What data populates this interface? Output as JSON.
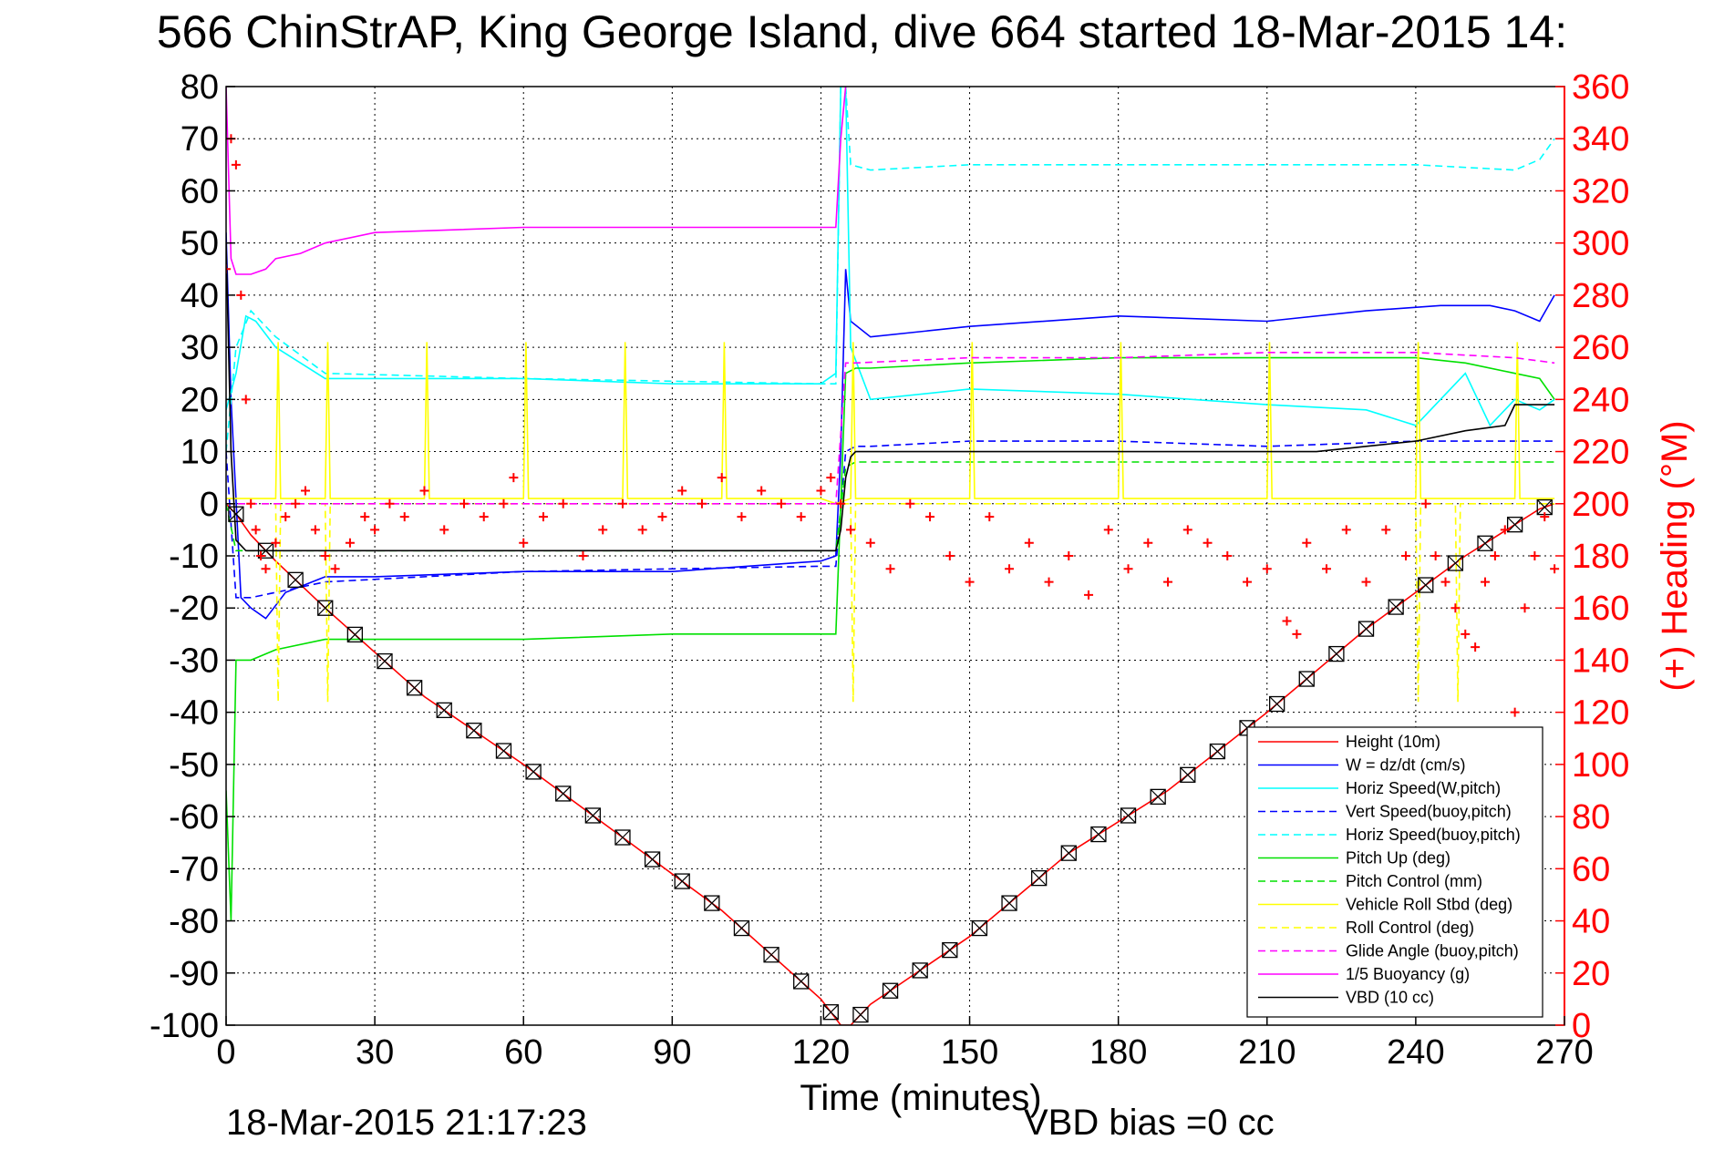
{
  "chart_data": {
    "type": "line",
    "title": "566 ChinStrAP, King George Island, dive 664 started 18-Mar-2015 14:",
    "xlabel": "Time (minutes)",
    "ylabel_right": "(+) Heading (°M)",
    "footer_left": "18-Mar-2015 21:17:23",
    "footer_right": "VBD bias =0 cc",
    "xlim": [
      0,
      270
    ],
    "ylim_left": [
      -100,
      80
    ],
    "ylim_right": [
      0,
      360
    ],
    "grid": true,
    "legend_position": "bottom-right",
    "x_ticks": [
      "0",
      "30",
      "60",
      "90",
      "120",
      "150",
      "180",
      "210",
      "240",
      "270"
    ],
    "y_ticks_left": [
      "80",
      "70",
      "60",
      "50",
      "40",
      "30",
      "20",
      "10",
      "0",
      "-10",
      "-20",
      "-30",
      "-40",
      "-50",
      "-60",
      "-70",
      "-80",
      "-90",
      "-100"
    ],
    "y_ticks_right": [
      "360",
      "340",
      "320",
      "300",
      "280",
      "260",
      "240",
      "220",
      "200",
      "180",
      "160",
      "140",
      "120",
      "100",
      "80",
      "60",
      "40",
      "20",
      "0"
    ],
    "colors": {
      "height": "#ff0000",
      "w": "#0000ff",
      "horiz_speed": "#00ffff",
      "pitch": "#00e000",
      "roll": "#ffff00",
      "glide": "#ff00ff",
      "buoyancy": "#ff00ff",
      "vbd": "#000000",
      "heading": "#ff0000"
    },
    "legend": [
      {
        "label": "Height (10m)",
        "color": "#ff0000",
        "dash": false
      },
      {
        "label": "W  = dz/dt (cm/s)",
        "color": "#0000ff",
        "dash": false
      },
      {
        "label": "Horiz Speed(W,pitch)",
        "color": "#00ffff",
        "dash": false
      },
      {
        "label": "Vert Speed(buoy,pitch)",
        "color": "#0000ff",
        "dash": true
      },
      {
        "label": "Horiz Speed(buoy,pitch)",
        "color": "#00ffff",
        "dash": true
      },
      {
        "label": "Pitch Up (deg)",
        "color": "#00e000",
        "dash": false
      },
      {
        "label": "Pitch Control (mm)",
        "color": "#00e000",
        "dash": true
      },
      {
        "label": "Vehicle Roll Stbd (deg)",
        "color": "#ffff00",
        "dash": false
      },
      {
        "label": "Roll Control (deg)",
        "color": "#ffff00",
        "dash": true
      },
      {
        "label": "Glide Angle (buoy,pitch)",
        "color": "#ff00ff",
        "dash": true
      },
      {
        "label": "1/5 Buoyancy (g)",
        "color": "#ff00ff",
        "dash": false
      },
      {
        "label": "VBD (10 cc)",
        "color": "#000000",
        "dash": false
      }
    ],
    "series": [
      {
        "name": "Height (10m)",
        "x": [
          0,
          2,
          5,
          10,
          20,
          40,
          60,
          80,
          100,
          120,
          124,
          126,
          130,
          150,
          170,
          190,
          210,
          230,
          250,
          265,
          268
        ],
        "y": [
          0,
          -2,
          -6,
          -11,
          -20,
          -37,
          -50,
          -64,
          -78,
          -95,
          -100,
          -100,
          -96,
          -83,
          -67,
          -55,
          -40,
          -24,
          -10,
          -1,
          0
        ]
      },
      {
        "name": "W  = dz/dt (cm/s)",
        "x": [
          0,
          1,
          3,
          5,
          8,
          12,
          20,
          30,
          60,
          90,
          120,
          123,
          124,
          125,
          126,
          130,
          150,
          180,
          210,
          230,
          245,
          255,
          260,
          265,
          268
        ],
        "y": [
          52,
          20,
          -18,
          -20,
          -22,
          -17,
          -14,
          -14,
          -13,
          -13,
          -11,
          -10,
          10,
          45,
          35,
          32,
          34,
          36,
          35,
          37,
          38,
          38,
          37,
          35,
          40
        ]
      },
      {
        "name": "Horiz Speed(W,pitch)",
        "x": [
          0,
          2,
          4,
          6,
          10,
          20,
          30,
          60,
          90,
          120,
          123,
          124,
          125,
          126,
          130,
          150,
          180,
          210,
          230,
          240,
          250,
          255,
          260,
          265,
          268
        ],
        "y": [
          18,
          25,
          36,
          35,
          30,
          24,
          24,
          24,
          23,
          23,
          25,
          80,
          80,
          30,
          20,
          22,
          21,
          19,
          18,
          15,
          25,
          15,
          20,
          18,
          20
        ]
      },
      {
        "name": "Vert Speed(buoy,pitch)",
        "x": [
          0,
          2,
          5,
          10,
          20,
          60,
          120,
          123,
          125,
          127,
          130,
          150,
          180,
          210,
          240,
          260,
          265,
          268
        ],
        "y": [
          10,
          -18,
          -18,
          -17,
          -15,
          -13,
          -12,
          -12,
          10,
          11,
          11,
          12,
          12,
          11,
          12,
          12,
          12,
          12
        ]
      },
      {
        "name": "Horiz Speed(buoy,pitch)",
        "x": [
          0,
          2,
          5,
          10,
          20,
          60,
          120,
          123,
          124,
          125,
          126,
          130,
          150,
          180,
          210,
          240,
          260,
          265,
          268
        ],
        "y": [
          10,
          30,
          37,
          32,
          25,
          24,
          23,
          23,
          80,
          80,
          65,
          64,
          65,
          65,
          65,
          65,
          64,
          66,
          70
        ]
      },
      {
        "name": "Pitch Up (deg)",
        "x": [
          0,
          1,
          2,
          3,
          5,
          10,
          20,
          60,
          90,
          120,
          123,
          125,
          127,
          130,
          150,
          180,
          210,
          240,
          250,
          260,
          265,
          268
        ],
        "y": [
          -55,
          -80,
          -30,
          -30,
          -30,
          -28,
          -26,
          -26,
          -25,
          -25,
          -25,
          25,
          26,
          26,
          27,
          28,
          28,
          28,
          27,
          25,
          24,
          20
        ]
      },
      {
        "name": "Pitch Control (mm)",
        "x": [
          0,
          2,
          5,
          10,
          20,
          60,
          120,
          123,
          125,
          127,
          130,
          150,
          180,
          210,
          240,
          268
        ],
        "y": [
          0,
          -9,
          -9,
          -9,
          -9,
          -9,
          -9,
          -9,
          7,
          8,
          8,
          8,
          8,
          8,
          8,
          8
        ]
      },
      {
        "name": "Vehicle Roll Stbd (deg)",
        "x": [
          0,
          5,
          10,
          10.5,
          11,
          20,
          20.5,
          21,
          40,
          40.5,
          41,
          60,
          60.5,
          61,
          80,
          80.5,
          81,
          100,
          100.5,
          101,
          120,
          123,
          126,
          126.5,
          127,
          150,
          150.5,
          151,
          180,
          180.5,
          181,
          210,
          210.5,
          211,
          240,
          240.5,
          241,
          260,
          260.5,
          261,
          268
        ],
        "y": [
          1,
          1,
          1,
          31,
          1,
          1,
          31,
          1,
          1,
          31,
          1,
          1,
          31,
          1,
          1,
          31,
          1,
          1,
          31,
          1,
          1,
          0,
          1,
          31,
          1,
          1,
          31,
          1,
          1,
          31,
          1,
          1,
          31,
          1,
          1,
          31,
          1,
          1,
          31,
          1,
          1
        ]
      },
      {
        "name": "Roll Control (deg)",
        "x": [
          0,
          5,
          10,
          10.5,
          11,
          20,
          20.5,
          21,
          120,
          126,
          126.5,
          127,
          240,
          240.5,
          241,
          248,
          248.5,
          249,
          268
        ],
        "y": [
          0,
          0,
          0,
          -38,
          0,
          0,
          -38,
          0,
          0,
          0,
          -38,
          0,
          0,
          -38,
          0,
          0,
          -38,
          0,
          0
        ]
      },
      {
        "name": "Glide Angle (buoy,pitch)",
        "x": [
          0,
          5,
          60,
          120,
          123,
          125,
          127,
          150,
          180,
          210,
          240,
          260,
          268
        ],
        "y": [
          0,
          0,
          0,
          0,
          0,
          27,
          27,
          28,
          28,
          29,
          29,
          28,
          27
        ]
      },
      {
        "name": "1/5 Buoyancy (g)",
        "x": [
          0,
          1,
          2,
          5,
          8,
          10,
          15,
          20,
          30,
          60,
          90,
          120,
          122,
          123,
          124,
          125
        ],
        "y": [
          80,
          47,
          44,
          44,
          45,
          47,
          48,
          50,
          52,
          53,
          53,
          53,
          53,
          53,
          70,
          80
        ]
      },
      {
        "name": "VBD (10 cc)",
        "x": [
          0,
          1,
          2,
          4,
          5,
          120,
          123,
          124,
          125,
          126,
          127,
          128,
          210,
          220,
          230,
          240,
          250,
          258,
          260,
          268
        ],
        "y": [
          50,
          10,
          -7,
          -9,
          -9,
          -9,
          -9,
          -5,
          5,
          9,
          10,
          10,
          10,
          10,
          11,
          12,
          14,
          15,
          19,
          19
        ]
      }
    ],
    "heading_points": {
      "name": "Heading (°M)",
      "x": [
        0,
        1,
        2,
        3,
        4,
        5,
        6,
        7,
        8,
        10,
        12,
        14,
        16,
        18,
        20,
        22,
        25,
        28,
        30,
        33,
        36,
        40,
        44,
        48,
        52,
        56,
        58,
        60,
        64,
        68,
        72,
        76,
        80,
        84,
        88,
        92,
        96,
        100,
        104,
        108,
        112,
        116,
        120,
        122,
        124,
        126,
        130,
        134,
        138,
        142,
        146,
        150,
        154,
        158,
        162,
        166,
        170,
        174,
        178,
        182,
        186,
        190,
        194,
        198,
        202,
        206,
        210,
        214,
        216,
        218,
        222,
        226,
        230,
        234,
        238,
        242,
        244,
        246,
        248,
        250,
        252,
        254,
        256,
        258,
        260,
        262,
        264,
        266,
        268
      ],
      "y": [
        290,
        340,
        330,
        280,
        240,
        200,
        190,
        180,
        175,
        185,
        195,
        200,
        205,
        190,
        180,
        175,
        185,
        195,
        190,
        200,
        195,
        205,
        190,
        200,
        195,
        200,
        210,
        185,
        195,
        200,
        180,
        190,
        200,
        190,
        195,
        205,
        200,
        210,
        195,
        205,
        200,
        195,
        205,
        210,
        200,
        190,
        185,
        175,
        200,
        195,
        180,
        170,
        195,
        175,
        185,
        170,
        180,
        165,
        190,
        175,
        185,
        170,
        190,
        185,
        180,
        170,
        175,
        155,
        150,
        185,
        175,
        190,
        170,
        190,
        180,
        200,
        180,
        170,
        160,
        150,
        145,
        170,
        180,
        190,
        120,
        160,
        180,
        195,
        175
      ]
    }
  }
}
